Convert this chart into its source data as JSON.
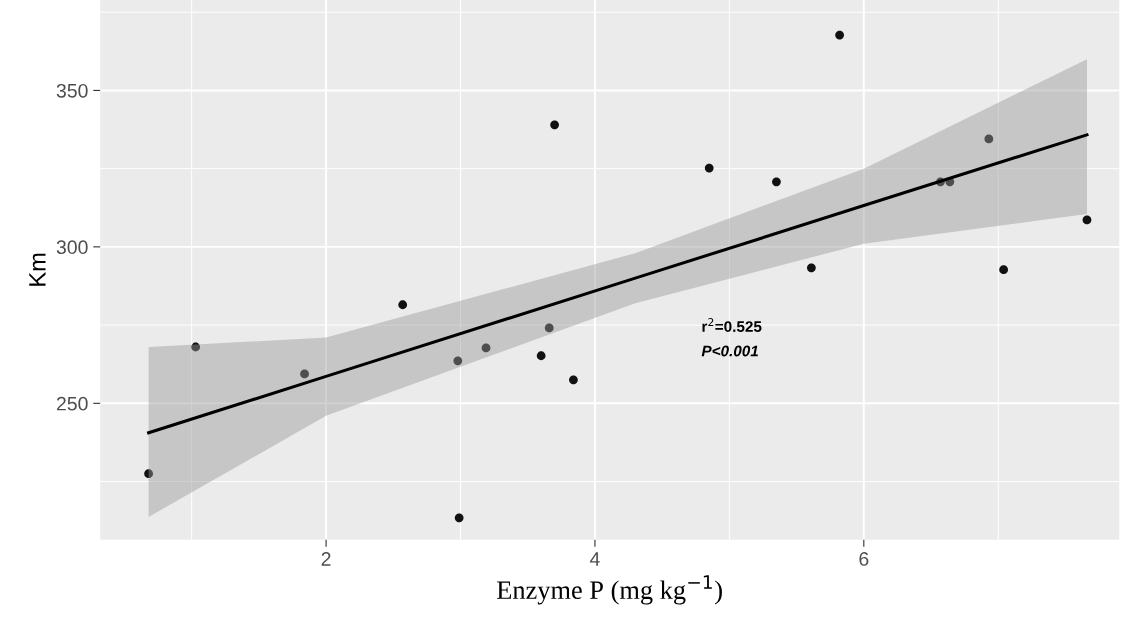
{
  "chart_data": {
    "type": "scatter",
    "xlabel": "Enzyme P (mg kg$^{−1}$)",
    "ylabel": "Km",
    "series": [
      {
        "color": "#111111",
        "marker": "circle",
        "x": [
          0.68,
          1.03,
          1.84,
          2.57,
          2.98,
          2.99,
          3.19,
          3.6,
          3.66,
          3.7,
          3.84,
          4.85,
          5.35,
          5.61,
          5.82,
          6.57,
          6.64,
          6.93,
          7.04,
          7.66
        ],
        "values": [
          227.5,
          268,
          259.4,
          281.5,
          263.6,
          213.4,
          267.7,
          265.2,
          274.1,
          339,
          257.5,
          325.2,
          320.8,
          293.3,
          367.7,
          320.8,
          320.8,
          334.5,
          292.7,
          308.6
        ]
      },
      {
        "type": "line",
        "color": "#000000",
        "x": [
          0.68,
          2,
          4.3,
          6,
          7.66
        ],
        "values": [
          240.6,
          258.6,
          290,
          313.2,
          335.8
        ],
        "lower": [
          213.7,
          246,
          282,
          301,
          310.5
        ],
        "upper": [
          268,
          271,
          298,
          325,
          360
        ]
      }
    ],
    "xlim": [
      0.32,
      7.9
    ],
    "ylim": [
      206.4,
      378.9
    ],
    "xticks": [
      2,
      4,
      6
    ],
    "yticks": [
      250,
      300,
      350
    ],
    "grid": true,
    "legend": false,
    "annotations": [
      "r$^{2}$=0.525",
      "P<0.001"
    ]
  }
}
